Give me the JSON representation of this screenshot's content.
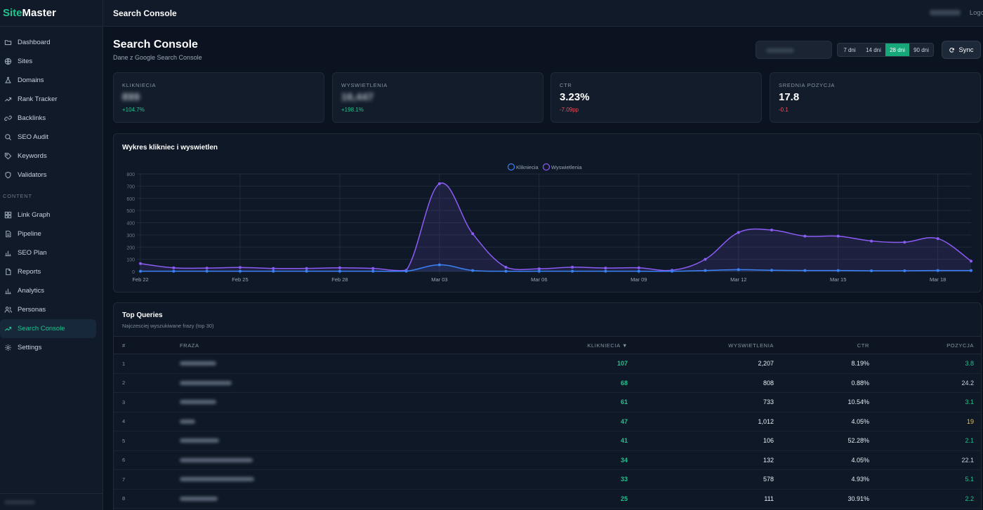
{
  "brand": {
    "part1": "Site",
    "part2": "Master"
  },
  "sidebar": {
    "items": [
      {
        "label": "Dashboard",
        "icon": "folder-icon"
      },
      {
        "label": "Sites",
        "icon": "globe-icon"
      },
      {
        "label": "Domains",
        "icon": "flask-icon"
      },
      {
        "label": "Rank Tracker",
        "icon": "trend-icon"
      },
      {
        "label": "Backlinks",
        "icon": "link-icon"
      },
      {
        "label": "SEO Audit",
        "icon": "search-icon"
      },
      {
        "label": "Keywords",
        "icon": "tag-icon"
      },
      {
        "label": "Validators",
        "icon": "shield-icon"
      }
    ],
    "section_label": "CONTENT",
    "content_items": [
      {
        "label": "Link Graph",
        "icon": "grid-icon"
      },
      {
        "label": "Pipeline",
        "icon": "document-icon"
      },
      {
        "label": "SEO Plan",
        "icon": "bar-chart-icon"
      },
      {
        "label": "Reports",
        "icon": "file-icon"
      },
      {
        "label": "Analytics",
        "icon": "bar-chart-icon"
      },
      {
        "label": "Personas",
        "icon": "users-icon"
      },
      {
        "label": "Search Console",
        "icon": "trend-icon",
        "active": true
      },
      {
        "label": "Settings",
        "icon": "gear-icon"
      }
    ]
  },
  "topbar": {
    "title": "Search Console",
    "logout": "Logo"
  },
  "header": {
    "title": "Search Console",
    "subtitle": "Dane z Google Search Console",
    "ranges": [
      "7 dni",
      "14 dni",
      "28 dni",
      "90 dni"
    ],
    "active_range": "28 dni",
    "sync_label": "Sync"
  },
  "cards": [
    {
      "label": "KLIKNIECIA",
      "value": "899",
      "delta": "+104.7%",
      "trend": "up",
      "blurred": true
    },
    {
      "label": "WYSWIETLENIA",
      "value": "16,447",
      "delta": "+198.1%",
      "trend": "up",
      "blurred": true
    },
    {
      "label": "CTR",
      "value": "3.23%",
      "delta": "-7.09pp",
      "trend": "down",
      "blurred": false
    },
    {
      "label": "SREDNIA POZYCJA",
      "value": "17.8",
      "delta": "-0.1",
      "trend": "down",
      "blurred": false
    }
  ],
  "chart": {
    "title": "Wykres klikniec i wyswietlen"
  },
  "chart_data": {
    "type": "line",
    "x": [
      "Feb 22",
      "Feb 23",
      "Feb 24",
      "Feb 25",
      "Feb 26",
      "Feb 27",
      "Feb 28",
      "Mar 01",
      "Mar 02",
      "Mar 03",
      "Mar 04",
      "Mar 05",
      "Mar 06",
      "Mar 07",
      "Mar 08",
      "Mar 09",
      "Mar 10",
      "Mar 11",
      "Mar 12",
      "Mar 13",
      "Mar 14",
      "Mar 15",
      "Mar 16",
      "Mar 17",
      "Mar 18",
      "Mar 19"
    ],
    "xticks": [
      "Feb 22",
      "Feb 25",
      "Feb 28",
      "Mar 03",
      "Mar 06",
      "Mar 09",
      "Mar 12",
      "Mar 15",
      "Mar 18"
    ],
    "ylim": [
      0,
      800
    ],
    "yticks": [
      0,
      100,
      200,
      300,
      400,
      500,
      600,
      700,
      800
    ],
    "series": [
      {
        "name": "Klikniecia",
        "color": "#3b82f6",
        "values": [
          2,
          2,
          2,
          2,
          2,
          2,
          2,
          2,
          2,
          55,
          8,
          2,
          2,
          2,
          2,
          2,
          2,
          8,
          15,
          10,
          8,
          8,
          6,
          6,
          8,
          8
        ]
      },
      {
        "name": "Wyswietlenia",
        "color": "#8b5cf6",
        "values": [
          65,
          30,
          28,
          33,
          25,
          25,
          30,
          25,
          10,
          720,
          310,
          35,
          22,
          35,
          28,
          30,
          10,
          100,
          320,
          340,
          290,
          290,
          250,
          240,
          270,
          85
        ]
      }
    ],
    "legend_position": "top-center",
    "grid": true
  },
  "queries": {
    "title": "Top Queries",
    "subtitle": "Najczesciej wyszukiwane frazy (top 30)",
    "columns": {
      "num": "#",
      "phrase": "FRAZA",
      "clicks": "KLIKNIECIA ▼",
      "impressions": "WYSWIETLENIA",
      "ctr": "CTR",
      "position": "POZYCJA"
    },
    "rows": [
      {
        "num": "1",
        "clicks": "107",
        "impressions": "2,207",
        "ctr": "8.19%",
        "position": "3.8",
        "pos_class": "pos-good"
      },
      {
        "num": "2",
        "clicks": "68",
        "impressions": "808",
        "ctr": "0.88%",
        "position": "24.2",
        "pos_class": "pos-plain"
      },
      {
        "num": "3",
        "clicks": "61",
        "impressions": "733",
        "ctr": "10.54%",
        "position": "3.1",
        "pos_class": "pos-good"
      },
      {
        "num": "4",
        "clicks": "47",
        "impressions": "1,012",
        "ctr": "4.05%",
        "position": "19",
        "pos_class": "pos-mid"
      },
      {
        "num": "5",
        "clicks": "41",
        "impressions": "106",
        "ctr": "52.28%",
        "position": "2.1",
        "pos_class": "pos-good"
      },
      {
        "num": "6",
        "clicks": "34",
        "impressions": "132",
        "ctr": "4.05%",
        "position": "22.1",
        "pos_class": "pos-plain"
      },
      {
        "num": "7",
        "clicks": "33",
        "impressions": "578",
        "ctr": "4.93%",
        "position": "5.1",
        "pos_class": "pos-good"
      },
      {
        "num": "8",
        "clicks": "25",
        "impressions": "111",
        "ctr": "30.91%",
        "position": "2.2",
        "pos_class": "pos-good"
      }
    ]
  }
}
